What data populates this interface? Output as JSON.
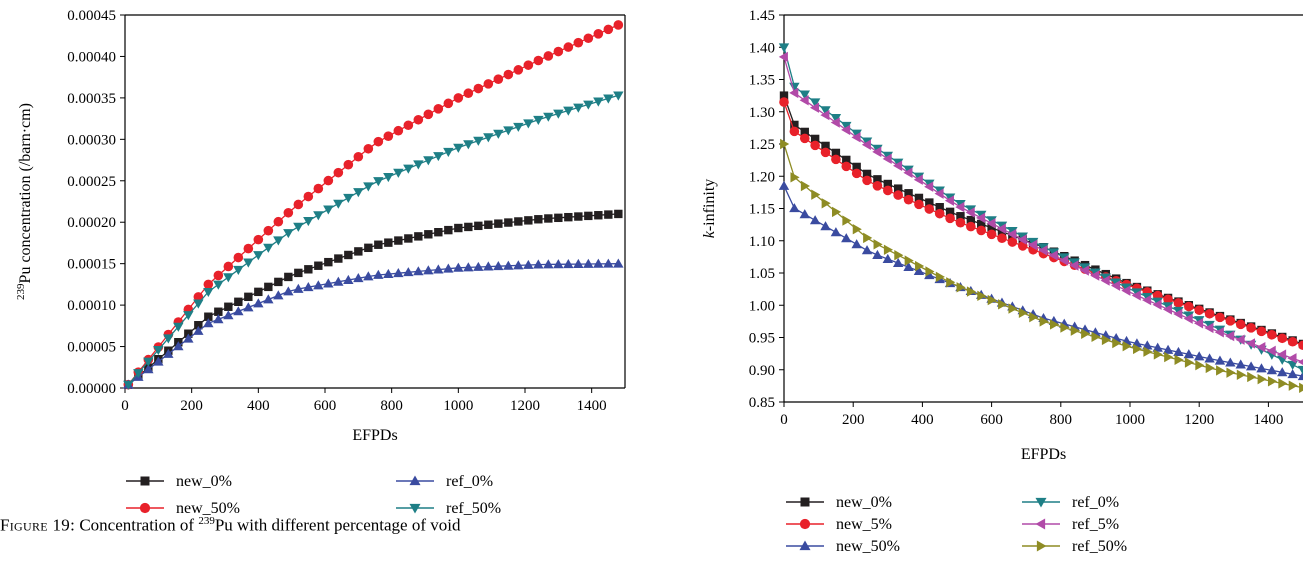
{
  "colors": {
    "new_0": "#231f20",
    "new_5": "#e8212a",
    "new_50_red": "#e8212a",
    "blue": "#3a4ba0",
    "teal": "#1e7f86",
    "magenta": "#b14aa8",
    "olive": "#8e8c24"
  },
  "caption": {
    "prefix": "Figure 19:",
    "text_before": " Concentration of ",
    "superscript": "239",
    "text_after": "Pu with different percentage of void"
  },
  "chart_data": [
    {
      "type": "line",
      "title": "",
      "xlabel": "EFPDs",
      "ylabel": "Pu concentration (/barn·cm)",
      "ylabel_superscript": "239",
      "xlim": [
        0,
        1500
      ],
      "ylim": [
        0,
        0.00045
      ],
      "x_ticks": [
        0,
        200,
        400,
        600,
        800,
        1000,
        1200,
        1400
      ],
      "y_ticks": [
        "0.00000",
        "0.00005",
        "0.00010",
        "0.00015",
        "0.00020",
        "0.00025",
        "0.00030",
        "0.00035",
        "0.00040",
        "0.00045"
      ],
      "grid": false,
      "legend_position": "bottom",
      "x_step_points": 30,
      "series": [
        {
          "name": "new_0%",
          "marker": "square",
          "color": "#231f20",
          "values": [
            [
              10,
              4e-06
            ],
            [
              250,
              8.6e-05
            ],
            [
              500,
              0.000136
            ],
            [
              750,
              0.000172
            ],
            [
              1000,
              0.000193
            ],
            [
              1250,
              0.000204
            ],
            [
              1480,
              0.00021
            ]
          ]
        },
        {
          "name": "new_50%",
          "marker": "circle",
          "color": "#e8212a",
          "values": [
            [
              10,
              4e-06
            ],
            [
              250,
              0.000125
            ],
            [
              500,
              0.000215
            ],
            [
              750,
              0.000295
            ],
            [
              1000,
              0.00035
            ],
            [
              1250,
              0.000397
            ],
            [
              1480,
              0.000438
            ]
          ]
        },
        {
          "name": "ref_0%",
          "marker": "triangle-up",
          "color": "#3a4ba0",
          "values": [
            [
              10,
              4e-06
            ],
            [
              250,
              7.8e-05
            ],
            [
              500,
              0.000118
            ],
            [
              750,
              0.000136
            ],
            [
              1000,
              0.000145
            ],
            [
              1250,
              0.000149
            ],
            [
              1480,
              0.00015
            ]
          ]
        },
        {
          "name": "ref_50%",
          "marker": "triangle-down",
          "color": "#1e7f86",
          "values": [
            [
              10,
              4e-06
            ],
            [
              250,
              0.000116
            ],
            [
              500,
              0.00019
            ],
            [
              750,
              0.000248
            ],
            [
              1000,
              0.00029
            ],
            [
              1250,
              0.000325
            ],
            [
              1480,
              0.000353
            ]
          ]
        }
      ]
    },
    {
      "type": "line",
      "title": "",
      "xlabel": "EFPDs",
      "ylabel_italic": "k",
      "ylabel": "-infinity",
      "xlim": [
        0,
        1500
      ],
      "ylim": [
        0.85,
        1.45
      ],
      "x_ticks": [
        0,
        200,
        400,
        600,
        800,
        1000,
        1200,
        1400
      ],
      "y_ticks": [
        "0.85",
        "0.90",
        "0.95",
        "1.00",
        "1.05",
        "1.10",
        "1.15",
        "1.20",
        "1.25",
        "1.30",
        "1.35",
        "1.40",
        "1.45"
      ],
      "grid": false,
      "legend_position": "bottom",
      "x_step_points": 30,
      "series": [
        {
          "name": "new_0%",
          "marker": "square",
          "color": "#231f20",
          "values": [
            [
              0,
              1.325
            ],
            [
              15,
              1.285
            ],
            [
              250,
              1.2
            ],
            [
              500,
              1.14
            ],
            [
              750,
              1.09
            ],
            [
              1000,
              1.032
            ],
            [
              1250,
              0.985
            ],
            [
              1500,
              0.94
            ]
          ]
        },
        {
          "name": "new_5%",
          "marker": "circle",
          "color": "#e8212a",
          "values": [
            [
              0,
              1.315
            ],
            [
              15,
              1.275
            ],
            [
              250,
              1.19
            ],
            [
              500,
              1.13
            ],
            [
              750,
              1.08
            ],
            [
              1000,
              1.03
            ],
            [
              1250,
              0.983
            ],
            [
              1500,
              0.938
            ]
          ]
        },
        {
          "name": "new_50%",
          "marker": "triangle-up",
          "color": "#3a4ba0",
          "values": [
            [
              0,
              1.185
            ],
            [
              15,
              1.155
            ],
            [
              250,
              1.082
            ],
            [
              500,
              1.03
            ],
            [
              750,
              0.98
            ],
            [
              1000,
              0.943
            ],
            [
              1250,
              0.915
            ],
            [
              1500,
              0.89
            ]
          ]
        },
        {
          "name": "ref_0%",
          "marker": "triangle-down",
          "color": "#1e7f86",
          "values": [
            [
              0,
              1.4
            ],
            [
              15,
              1.345
            ],
            [
              250,
              1.25
            ],
            [
              500,
              1.16
            ],
            [
              750,
              1.09
            ],
            [
              1000,
              1.025
            ],
            [
              1250,
              0.965
            ],
            [
              1500,
              0.9
            ]
          ]
        },
        {
          "name": "ref_5%",
          "marker": "triangle-left",
          "color": "#b14aa8",
          "values": [
            [
              0,
              1.385
            ],
            [
              15,
              1.335
            ],
            [
              250,
              1.245
            ],
            [
              500,
              1.155
            ],
            [
              750,
              1.085
            ],
            [
              1000,
              1.02
            ],
            [
              1250,
              0.96
            ],
            [
              1500,
              0.912
            ]
          ]
        },
        {
          "name": "ref_50%",
          "marker": "triangle-right",
          "color": "#8e8c24",
          "values": [
            [
              0,
              1.25
            ],
            [
              15,
              1.205
            ],
            [
              250,
              1.1
            ],
            [
              500,
              1.03
            ],
            [
              750,
              0.975
            ],
            [
              1000,
              0.935
            ],
            [
              1250,
              0.9
            ],
            [
              1500,
              0.872
            ]
          ]
        }
      ]
    }
  ]
}
